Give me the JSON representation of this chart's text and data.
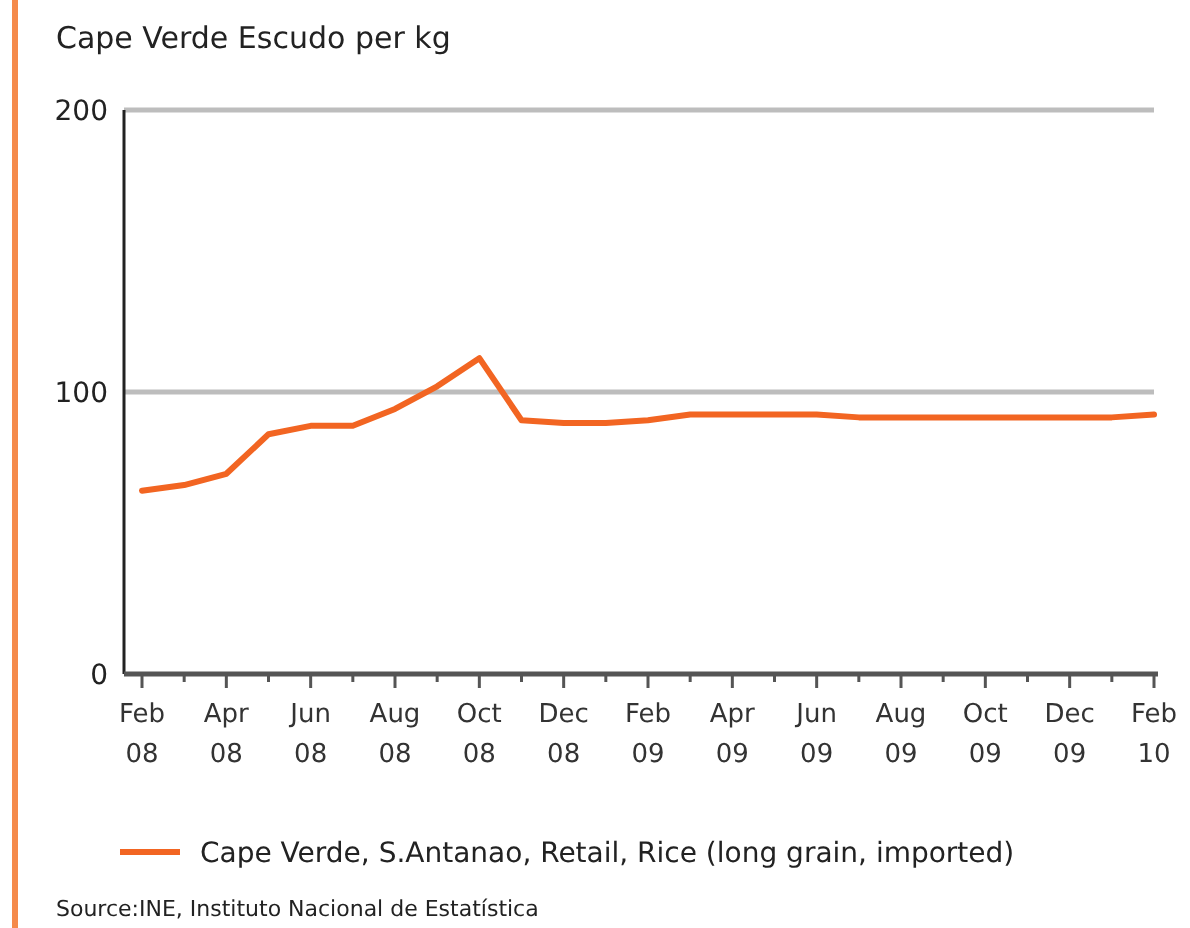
{
  "chart_data": {
    "type": "line",
    "title": "Cape Verde Escudo per kg",
    "categories": [
      "Feb 08",
      null,
      "Apr 08",
      null,
      "Jun 08",
      null,
      "Aug 08",
      null,
      "Oct 08",
      null,
      "Dec 08",
      null,
      "Feb 09",
      null,
      "Apr 09",
      null,
      "Jun 09",
      null,
      "Aug 09",
      null,
      "Oct 09",
      null,
      "Dec 09",
      null,
      "Feb 10"
    ],
    "series": [
      {
        "name": "Cape Verde, S.Antanao, Retail, Rice (long grain, imported)",
        "color": "#f26522",
        "values": [
          65,
          67,
          71,
          85,
          88,
          88,
          94,
          102,
          112,
          90,
          89,
          89,
          90,
          92,
          92,
          92,
          92,
          91,
          91,
          91,
          91,
          91,
          91,
          91,
          92
        ]
      }
    ],
    "ylim": [
      0,
      200
    ],
    "yticks": [
      0,
      100,
      200
    ],
    "grid": "y",
    "legend": "bottom",
    "marker": "none",
    "line_style": "solid",
    "annotations": [
      "Source:INE, Instituto Nacional de Estatística"
    ]
  }
}
